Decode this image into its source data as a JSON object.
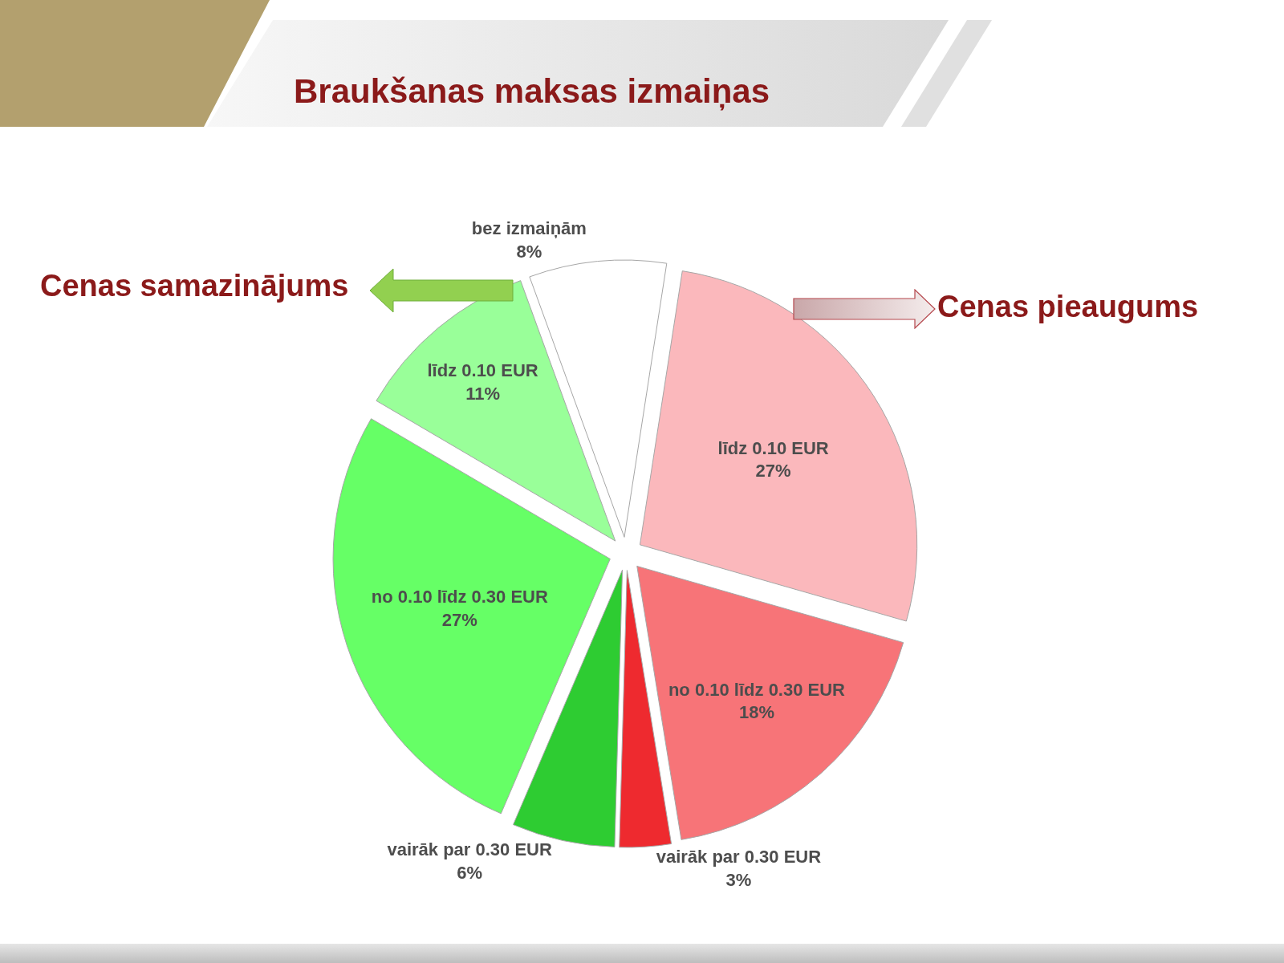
{
  "chart_data": {
    "type": "pie",
    "title": "Braukšanas maksas izmaiņas",
    "categories": [
      "bez izmaiņām",
      "līdz 0.10 EUR",
      "no 0.10 līdz 0.30 EUR",
      "vairāk par 0.30 EUR",
      "vairāk par 0.30 EUR",
      "no 0.10 līdz 0.30 EUR",
      "līdz 0.10 EUR"
    ],
    "values": [
      8,
      27,
      18,
      3,
      6,
      27,
      11
    ],
    "value_labels": [
      "8%",
      "27%",
      "18%",
      "3%",
      "6%",
      "27%",
      "11%"
    ],
    "colors": [
      "#ffffff",
      "#fbb8bc",
      "#f77478",
      "#ee2a2f",
      "#2ecc32",
      "#66ff66",
      "#99ff99"
    ],
    "annotations": [
      "Cenas samazinājums",
      "Cenas pieaugums"
    ]
  }
}
